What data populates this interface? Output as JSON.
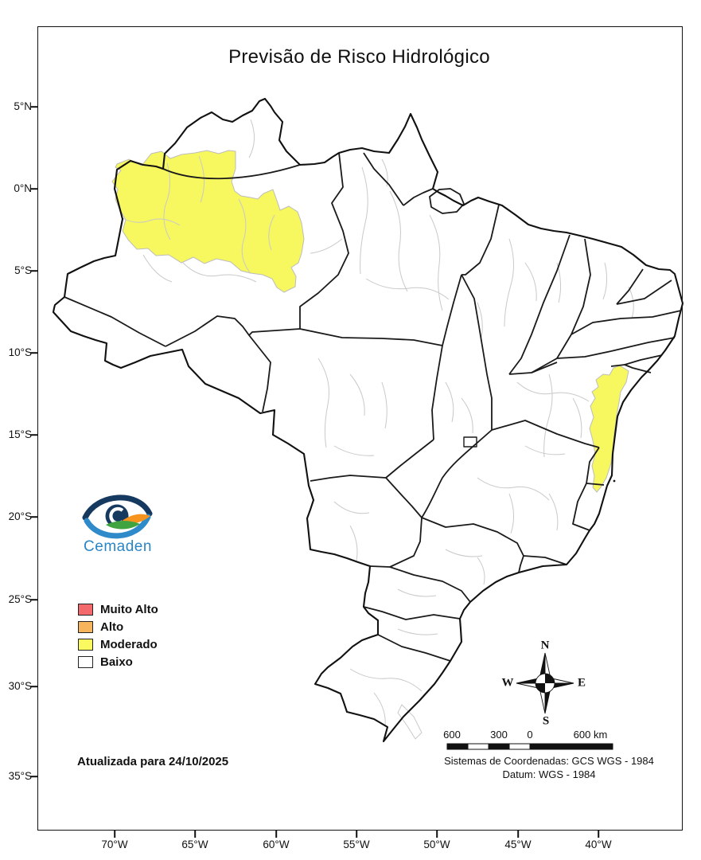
{
  "title": "Previsão de Risco Hidrológico",
  "axes": {
    "lat_ticks": [
      "5°N",
      "0°N",
      "5°S",
      "10°S",
      "15°S",
      "20°S",
      "25°S",
      "30°S",
      "35°S"
    ],
    "lon_ticks": [
      "70°W",
      "65°W",
      "60°W",
      "55°W",
      "50°W",
      "45°W",
      "40°W"
    ]
  },
  "map": {
    "moderado_fill": "#F7F75F",
    "state_border_color": "#1a1a1a",
    "subdivision_border_color": "#c9c9c9",
    "regions_highlighted": [
      {
        "name": "northwest-amazonas-basins",
        "risk": "Moderado"
      },
      {
        "name": "east-coast-bahia-strip",
        "risk": "Moderado"
      }
    ]
  },
  "legend": {
    "items": [
      {
        "label": "Muito Alto",
        "color": "#F4696B"
      },
      {
        "label": "Alto",
        "color": "#F6B55C"
      },
      {
        "label": "Moderado",
        "color": "#FAFA60"
      },
      {
        "label": "Baixo",
        "color": "#FFFFFF"
      }
    ]
  },
  "logo": {
    "text": "Cemaden",
    "accent": "#2b86c6"
  },
  "compass": {
    "n": "N",
    "s": "S",
    "e": "E",
    "w": "W"
  },
  "scalebar": {
    "labels": [
      "600",
      "300",
      "0",
      "600 km"
    ]
  },
  "footer": {
    "updated": "Atualizada para 24/10/2025",
    "coord_line1": "Sistemas de Coordenadas: GCS WGS - 1984",
    "coord_line2": "Datum: WGS - 1984"
  }
}
